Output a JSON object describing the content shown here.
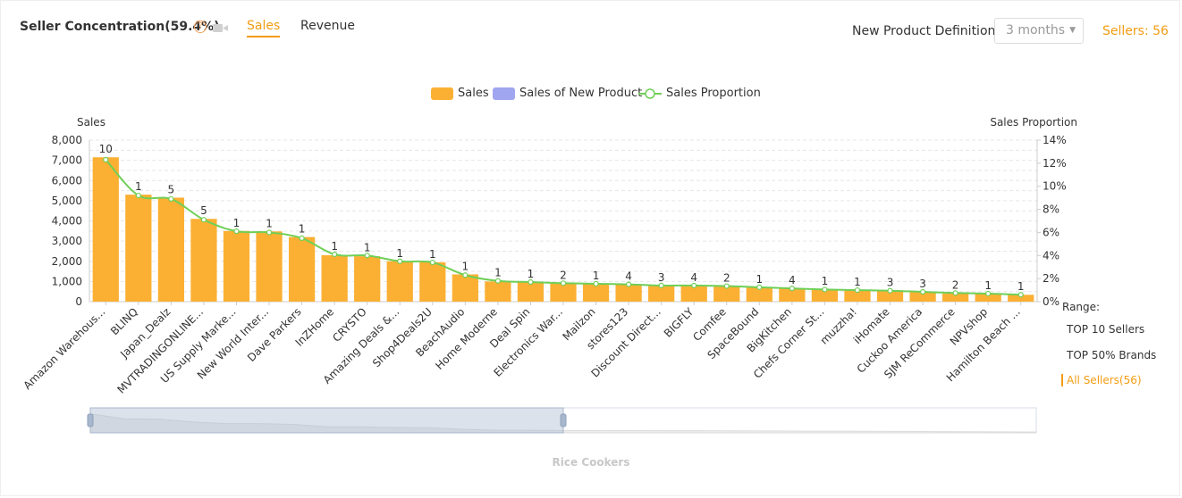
{
  "header": {
    "title": "Seller Concentration(59.4%)",
    "help_glyph": "?",
    "tabs": [
      {
        "label": "Sales"
      },
      {
        "label": "Revenue"
      }
    ],
    "npd_label": "New Product Definition",
    "npd_value": "3 months",
    "sellers_label": "Sellers: 56"
  },
  "legend": {
    "sales": "Sales",
    "new_product": "Sales of New Product",
    "proportion": "Sales Proportion"
  },
  "range": {
    "label": "Range:",
    "options": [
      "TOP 10 Sellers",
      "TOP 50% Brands",
      "All Sellers(56)"
    ]
  },
  "footer_label": "Rice Cookers",
  "colors": {
    "bar": "#fbb033",
    "new_product": "#a0a7f0",
    "line": "#6fcf57",
    "accent": "#f39c12"
  },
  "chart_data": {
    "type": "bar",
    "ylabel": "Sales",
    "y2label": "Sales Proportion",
    "ylim": [
      0,
      8000
    ],
    "y2lim": [
      0,
      14
    ],
    "yticks": [
      "0",
      "1,000",
      "2,000",
      "3,000",
      "4,000",
      "5,000",
      "6,000",
      "7,000",
      "8,000"
    ],
    "y2ticks": [
      "0%",
      "2%",
      "4%",
      "6%",
      "8%",
      "10%",
      "12%",
      "14%"
    ],
    "categories": [
      "Amazon Warehous...",
      "BLINQ",
      "Japan_Dealz",
      "MVTRADINGONLINE...",
      "US Supply Marke...",
      "New World Inter...",
      "Dave Parkers",
      "InZHome",
      "CRYSTO",
      "Amazing Deals &...",
      "Shop4Deals2U",
      "BeachAudio",
      "Home Moderne",
      "Deal Spin",
      "Electronics War...",
      "Mailzon",
      "stores123",
      "Discount Direct...",
      "BIGFLY",
      "Comfee",
      "SpaceBound",
      "BigKitchen",
      "Chefs Corner St...",
      "muzzha!",
      "iHomate",
      "Cuckoo America",
      "SJM ReCommerce",
      "NPVshop",
      "Hamilton Beach ..."
    ],
    "series": [
      {
        "name": "Sales",
        "values": [
          7150,
          5300,
          5150,
          4100,
          3500,
          3480,
          3200,
          2300,
          2250,
          2000,
          1950,
          1350,
          1000,
          950,
          900,
          880,
          860,
          800,
          780,
          750,
          700,
          650,
          620,
          580,
          560,
          480,
          400,
          380,
          340
        ]
      },
      {
        "name": "Sales Proportion",
        "values": [
          12.3,
          9.2,
          8.9,
          7.1,
          6.1,
          6.0,
          5.5,
          4.1,
          4.0,
          3.5,
          3.4,
          2.3,
          1.8,
          1.7,
          1.6,
          1.55,
          1.5,
          1.4,
          1.4,
          1.35,
          1.25,
          1.15,
          1.05,
          1.0,
          0.95,
          0.85,
          0.75,
          0.7,
          0.6
        ]
      }
    ],
    "data_labels": [
      "10",
      "1",
      "5",
      "5",
      "1",
      "1",
      "1",
      "1",
      "1",
      "1",
      "1",
      "1",
      "1",
      "1",
      "2",
      "1",
      "4",
      "3",
      "4",
      "2",
      "1",
      "4",
      "1",
      "1",
      "3",
      "3",
      "2",
      "1",
      "1"
    ],
    "grid": true,
    "legend_position": "top-center"
  }
}
